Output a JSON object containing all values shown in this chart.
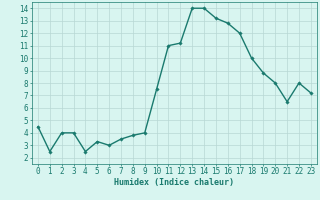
{
  "x": [
    0,
    1,
    2,
    3,
    4,
    5,
    6,
    7,
    8,
    9,
    10,
    11,
    12,
    13,
    14,
    15,
    16,
    17,
    18,
    19,
    20,
    21,
    22,
    23
  ],
  "y": [
    4.5,
    2.5,
    4.0,
    4.0,
    2.5,
    3.3,
    3.0,
    3.5,
    3.8,
    4.0,
    7.5,
    11.0,
    11.2,
    14.0,
    14.0,
    13.2,
    12.8,
    12.0,
    10.0,
    8.8,
    8.0,
    6.5,
    8.0,
    7.2
  ],
  "line_color": "#1a7a6e",
  "marker": "D",
  "marker_size": 1.8,
  "bg_color": "#d8f5f0",
  "grid_color": "#b8d8d4",
  "xlabel": "Humidex (Indice chaleur)",
  "xlim": [
    -0.5,
    23.5
  ],
  "ylim": [
    1.5,
    14.5
  ],
  "yticks": [
    2,
    3,
    4,
    5,
    6,
    7,
    8,
    9,
    10,
    11,
    12,
    13,
    14
  ],
  "xticks": [
    0,
    1,
    2,
    3,
    4,
    5,
    6,
    7,
    8,
    9,
    10,
    11,
    12,
    13,
    14,
    15,
    16,
    17,
    18,
    19,
    20,
    21,
    22,
    23
  ],
  "tick_color": "#1a7a6e",
  "label_color": "#1a7a6e",
  "xlabel_fontsize": 6.0,
  "tick_fontsize": 5.5,
  "linewidth": 1.0
}
